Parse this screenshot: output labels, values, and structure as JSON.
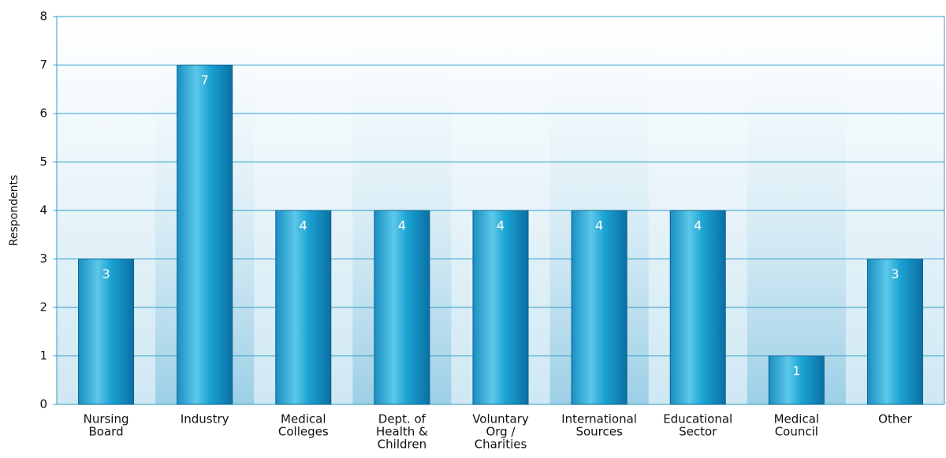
{
  "chart_data": {
    "type": "bar",
    "y_label": "Respondents",
    "categories": [
      [
        "Nursing",
        "Board"
      ],
      [
        "Industry"
      ],
      [
        "Medical",
        "Colleges"
      ],
      [
        "Dept. of",
        "Health &",
        "Children"
      ],
      [
        "Voluntary",
        "Org /",
        "Charities"
      ],
      [
        "International",
        "Sources"
      ],
      [
        "Educational",
        "Sector"
      ],
      [
        "Medical",
        "Council"
      ],
      [
        "Other"
      ]
    ],
    "values": [
      3,
      7,
      4,
      4,
      4,
      4,
      4,
      1,
      3
    ],
    "color": "#1a9ccc",
    "ylim": [
      0,
      8
    ],
    "yticks": [
      0,
      1,
      2,
      3,
      4,
      5,
      6,
      7,
      8
    ],
    "grid": true
  }
}
